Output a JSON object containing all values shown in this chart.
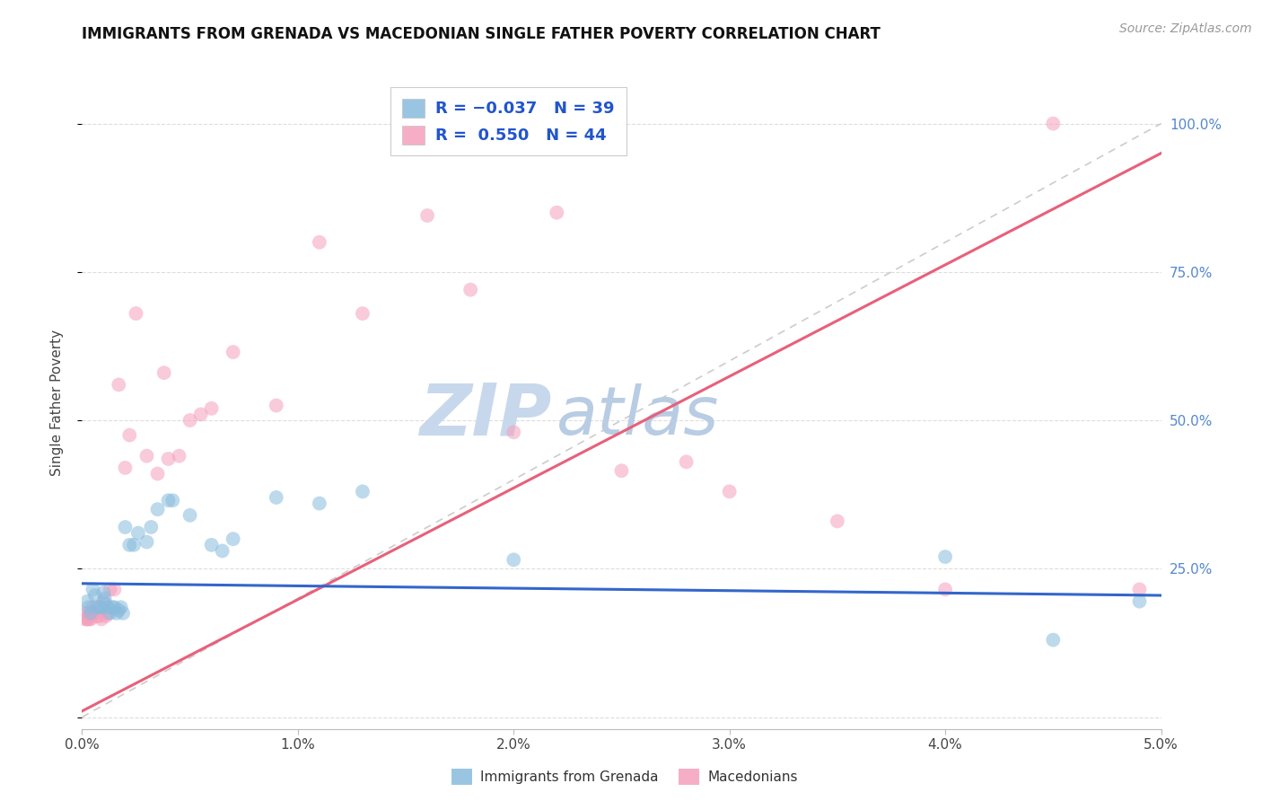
{
  "title": "IMMIGRANTS FROM GRENADA VS MACEDONIAN SINGLE FATHER POVERTY CORRELATION CHART",
  "source": "Source: ZipAtlas.com",
  "ylabel": "Single Father Poverty",
  "legend_label1": "Immigrants from Grenada",
  "legend_label2": "Macedonians",
  "blue_color": "#88bbdd",
  "pink_color": "#f5a0bc",
  "blue_line_color": "#3366cc",
  "pink_line_color": "#e8607a",
  "diagonal_color": "#cccccc",
  "watermark_zip_color": "#c8d8ec",
  "watermark_atlas_color": "#b8cce4",
  "xlim": [
    0.0,
    0.05
  ],
  "ylim": [
    -0.02,
    1.08
  ],
  "blue_scatter_x": [
    0.00025,
    0.0003,
    0.0004,
    0.0005,
    0.0006,
    0.0007,
    0.0008,
    0.0009,
    0.001,
    0.00105,
    0.0011,
    0.0012,
    0.0013,
    0.0014,
    0.0015,
    0.0016,
    0.0017,
    0.0018,
    0.0019,
    0.002,
    0.0022,
    0.0024,
    0.0026,
    0.003,
    0.0032,
    0.0035,
    0.004,
    0.0042,
    0.005,
    0.006,
    0.0065,
    0.007,
    0.009,
    0.011,
    0.013,
    0.02,
    0.04,
    0.045,
    0.049
  ],
  "blue_scatter_y": [
    0.195,
    0.185,
    0.175,
    0.215,
    0.205,
    0.185,
    0.185,
    0.185,
    0.21,
    0.2,
    0.19,
    0.185,
    0.175,
    0.185,
    0.185,
    0.175,
    0.18,
    0.185,
    0.175,
    0.32,
    0.29,
    0.29,
    0.31,
    0.295,
    0.32,
    0.35,
    0.365,
    0.365,
    0.34,
    0.29,
    0.28,
    0.3,
    0.37,
    0.36,
    0.38,
    0.265,
    0.27,
    0.13,
    0.195
  ],
  "pink_scatter_x": [
    0.0001,
    0.00015,
    0.0002,
    0.00025,
    0.0003,
    0.00035,
    0.0004,
    0.0005,
    0.0006,
    0.0007,
    0.0008,
    0.0009,
    0.001,
    0.0011,
    0.0012,
    0.0013,
    0.0015,
    0.0017,
    0.002,
    0.0022,
    0.0025,
    0.003,
    0.0035,
    0.0038,
    0.004,
    0.0045,
    0.005,
    0.0055,
    0.006,
    0.007,
    0.009,
    0.011,
    0.013,
    0.016,
    0.018,
    0.02,
    0.022,
    0.025,
    0.028,
    0.03,
    0.035,
    0.04,
    0.045,
    0.049
  ],
  "pink_scatter_y": [
    0.175,
    0.165,
    0.165,
    0.165,
    0.175,
    0.165,
    0.165,
    0.185,
    0.175,
    0.17,
    0.17,
    0.165,
    0.195,
    0.17,
    0.175,
    0.215,
    0.215,
    0.56,
    0.42,
    0.475,
    0.68,
    0.44,
    0.41,
    0.58,
    0.435,
    0.44,
    0.5,
    0.51,
    0.52,
    0.615,
    0.525,
    0.8,
    0.68,
    0.845,
    0.72,
    0.48,
    0.85,
    0.415,
    0.43,
    0.38,
    0.33,
    0.215,
    1.0,
    0.215
  ],
  "blue_line_x0": 0.0,
  "blue_line_y0": 0.225,
  "blue_line_x1": 0.05,
  "blue_line_y1": 0.205,
  "pink_line_x0": 0.0,
  "pink_line_y0": 0.01,
  "pink_line_x1": 0.05,
  "pink_line_y1": 0.95,
  "grid_color": "#dddddd",
  "background_color": "#ffffff",
  "yticks": [
    0.0,
    0.25,
    0.5,
    0.75,
    1.0
  ],
  "xticks": [
    0.0,
    0.01,
    0.02,
    0.03,
    0.04,
    0.05
  ]
}
